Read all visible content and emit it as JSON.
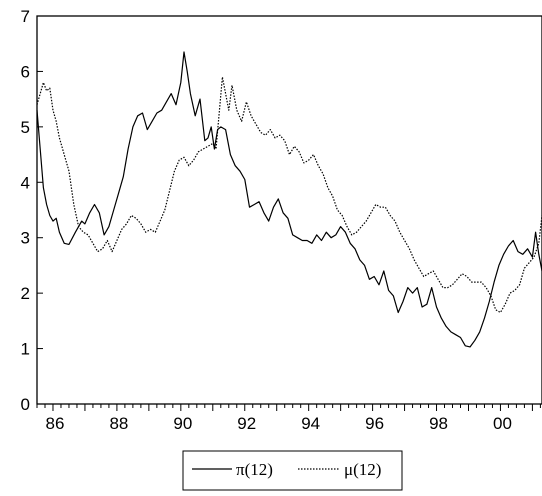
{
  "chart_data": {
    "type": "line",
    "title": "",
    "xlabel": "",
    "ylabel": "",
    "xlim": [
      1985.5,
      2001.3
    ],
    "ylim": [
      0,
      7
    ],
    "yticks": [
      0,
      1,
      2,
      3,
      4,
      5,
      6,
      7
    ],
    "xticks": [
      "86",
      "88",
      "90",
      "92",
      "94",
      "96",
      "98",
      "00"
    ],
    "xtick_years": [
      1986,
      1988,
      1990,
      1992,
      1994,
      1996,
      1998,
      2000
    ],
    "grid": false,
    "legend_position": "bottom-center",
    "series": [
      {
        "name": "π(12)",
        "style": "solid",
        "x": [
          1985.5,
          1985.6,
          1985.7,
          1985.8,
          1985.9,
          1986.0,
          1986.1,
          1986.2,
          1986.35,
          1986.5,
          1986.7,
          1986.9,
          1987.0,
          1987.15,
          1987.3,
          1987.45,
          1987.6,
          1987.75,
          1987.9,
          1988.05,
          1988.2,
          1988.35,
          1988.5,
          1988.65,
          1988.8,
          1988.95,
          1989.1,
          1989.25,
          1989.4,
          1989.55,
          1989.7,
          1989.85,
          1990.0,
          1990.1,
          1990.2,
          1990.3,
          1990.45,
          1990.6,
          1990.75,
          1990.85,
          1990.95,
          1991.05,
          1991.15,
          1991.25,
          1991.4,
          1991.55,
          1991.7,
          1991.85,
          1992.0,
          1992.15,
          1992.3,
          1992.45,
          1992.6,
          1992.75,
          1992.9,
          1993.05,
          1993.2,
          1993.35,
          1993.5,
          1993.65,
          1993.8,
          1993.95,
          1994.1,
          1994.25,
          1994.4,
          1994.55,
          1994.7,
          1994.85,
          1995.0,
          1995.15,
          1995.3,
          1995.45,
          1995.6,
          1995.75,
          1995.9,
          1996.05,
          1996.2,
          1996.35,
          1996.5,
          1996.65,
          1996.8,
          1996.95,
          1997.1,
          1997.25,
          1997.4,
          1997.55,
          1997.7,
          1997.85,
          1998.0,
          1998.15,
          1998.3,
          1998.45,
          1998.6,
          1998.75,
          1998.9,
          1999.05,
          1999.2,
          1999.35,
          1999.5,
          1999.65,
          1999.8,
          1999.95,
          2000.1,
          2000.25,
          2000.4,
          2000.55,
          2000.7,
          2000.85,
          2001.0,
          2001.1,
          2001.2,
          2001.3
        ],
        "y": [
          5.3,
          4.6,
          3.9,
          3.6,
          3.4,
          3.3,
          3.35,
          3.1,
          2.9,
          2.88,
          3.1,
          3.3,
          3.25,
          3.45,
          3.6,
          3.45,
          3.05,
          3.2,
          3.5,
          3.8,
          4.1,
          4.6,
          5.0,
          5.2,
          5.25,
          4.95,
          5.1,
          5.25,
          5.3,
          5.45,
          5.6,
          5.4,
          5.8,
          6.35,
          6.0,
          5.6,
          5.2,
          5.5,
          4.75,
          4.8,
          5.0,
          4.6,
          4.95,
          5.0,
          4.95,
          4.5,
          4.3,
          4.2,
          4.05,
          3.55,
          3.6,
          3.65,
          3.45,
          3.3,
          3.55,
          3.7,
          3.45,
          3.35,
          3.05,
          3.0,
          2.95,
          2.95,
          2.9,
          3.05,
          2.95,
          3.1,
          3.0,
          3.05,
          3.2,
          3.1,
          2.9,
          2.8,
          2.6,
          2.5,
          2.25,
          2.3,
          2.15,
          2.4,
          2.05,
          1.95,
          1.65,
          1.85,
          2.1,
          2.0,
          2.1,
          1.75,
          1.8,
          2.1,
          1.75,
          1.55,
          1.4,
          1.3,
          1.25,
          1.2,
          1.05,
          1.03,
          1.15,
          1.3,
          1.55,
          1.85,
          2.2,
          2.5,
          2.7,
          2.85,
          2.95,
          2.75,
          2.7,
          2.8,
          2.65,
          3.1,
          2.7,
          2.4
        ]
      },
      {
        "name": "μ(12)",
        "style": "dotted",
        "x": [
          1985.5,
          1985.6,
          1985.7,
          1985.8,
          1985.9,
          1986.0,
          1986.1,
          1986.2,
          1986.35,
          1986.5,
          1986.65,
          1986.8,
          1986.95,
          1987.1,
          1987.25,
          1987.4,
          1987.55,
          1987.7,
          1987.85,
          1988.0,
          1988.15,
          1988.3,
          1988.45,
          1988.6,
          1988.75,
          1988.9,
          1989.05,
          1989.2,
          1989.35,
          1989.5,
          1989.65,
          1989.8,
          1989.95,
          1990.1,
          1990.25,
          1990.4,
          1990.55,
          1990.7,
          1990.85,
          1991.0,
          1991.1,
          1991.2,
          1991.3,
          1991.4,
          1991.5,
          1991.6,
          1991.75,
          1991.9,
          1992.05,
          1992.2,
          1992.35,
          1992.5,
          1992.65,
          1992.8,
          1992.95,
          1993.1,
          1993.25,
          1993.4,
          1993.55,
          1993.7,
          1993.85,
          1994.0,
          1994.15,
          1994.3,
          1994.45,
          1994.6,
          1994.75,
          1994.9,
          1995.05,
          1995.2,
          1995.35,
          1995.5,
          1995.65,
          1995.8,
          1995.95,
          1996.1,
          1996.25,
          1996.4,
          1996.55,
          1996.7,
          1996.85,
          1997.0,
          1997.15,
          1997.3,
          1997.45,
          1997.6,
          1997.75,
          1997.9,
          1998.05,
          1998.2,
          1998.35,
          1998.5,
          1998.65,
          1998.8,
          1998.95,
          1999.1,
          1999.25,
          1999.4,
          1999.55,
          1999.7,
          1999.85,
          2000.0,
          2000.15,
          2000.3,
          2000.45,
          2000.6,
          2000.75,
          2000.9,
          2001.05,
          2001.2,
          2001.3
        ],
        "y": [
          5.4,
          5.6,
          5.8,
          5.65,
          5.7,
          5.3,
          5.1,
          4.8,
          4.5,
          4.2,
          3.6,
          3.2,
          3.1,
          3.05,
          2.9,
          2.75,
          2.8,
          2.95,
          2.75,
          2.95,
          3.15,
          3.25,
          3.4,
          3.35,
          3.25,
          3.1,
          3.15,
          3.1,
          3.3,
          3.5,
          3.85,
          4.2,
          4.4,
          4.45,
          4.3,
          4.4,
          4.55,
          4.6,
          4.65,
          4.7,
          4.6,
          5.25,
          5.9,
          5.6,
          5.3,
          5.75,
          5.3,
          5.1,
          5.45,
          5.2,
          5.05,
          4.9,
          4.85,
          4.95,
          4.8,
          4.85,
          4.75,
          4.5,
          4.65,
          4.55,
          4.35,
          4.4,
          4.5,
          4.3,
          4.15,
          3.9,
          3.75,
          3.5,
          3.4,
          3.2,
          3.05,
          3.1,
          3.2,
          3.3,
          3.45,
          3.6,
          3.55,
          3.55,
          3.4,
          3.3,
          3.1,
          2.95,
          2.8,
          2.6,
          2.45,
          2.3,
          2.35,
          2.4,
          2.25,
          2.1,
          2.1,
          2.15,
          2.25,
          2.35,
          2.3,
          2.2,
          2.2,
          2.2,
          2.1,
          1.95,
          1.7,
          1.65,
          1.8,
          2.0,
          2.05,
          2.15,
          2.45,
          2.55,
          2.65,
          2.9,
          3.4
        ]
      }
    ]
  }
}
